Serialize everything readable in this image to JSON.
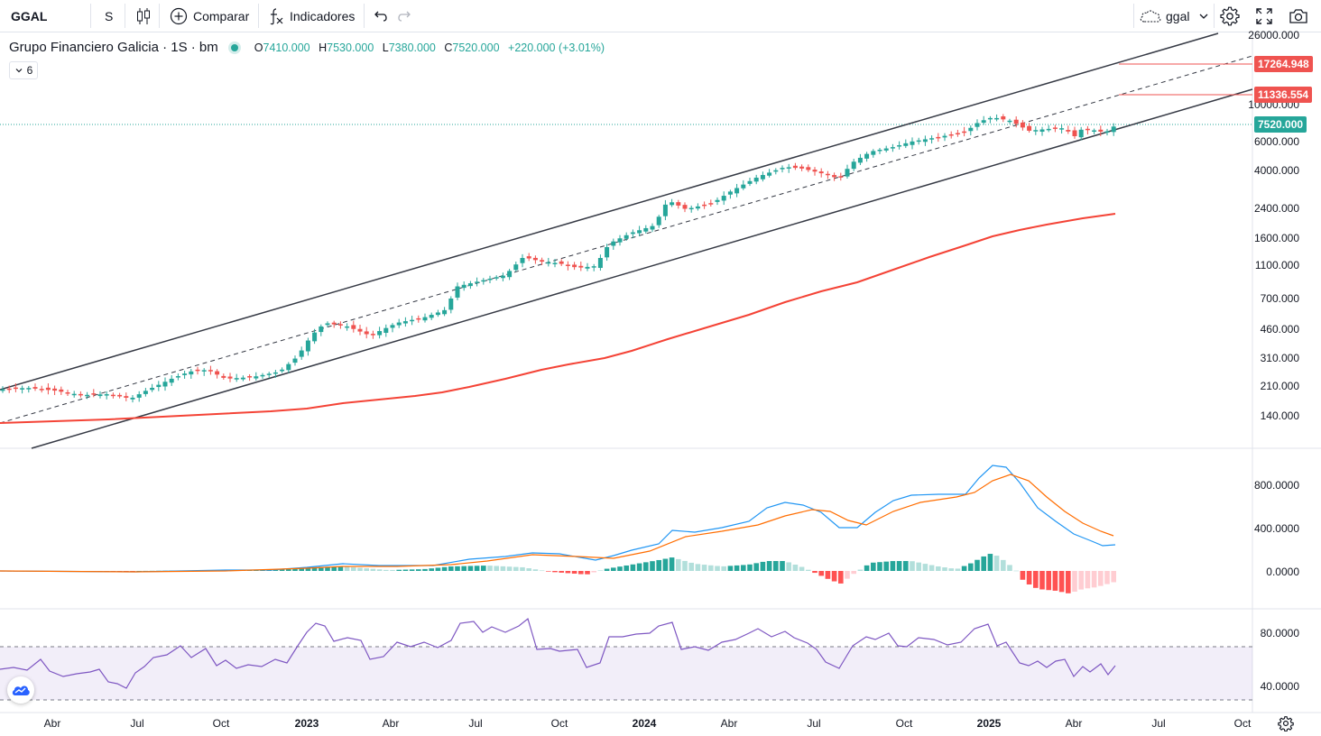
{
  "toolbar": {
    "symbol": "GGAL",
    "interval": "S",
    "compare_label": "Comparar",
    "indicators_label": "Indicadores",
    "layout_name": "ggal"
  },
  "legend": {
    "title": "Grupo Financiero Galicia · 1S · bm",
    "open_key": "O",
    "open": "7410.000",
    "high_key": "H",
    "high": "7530.000",
    "low_key": "L",
    "low": "7380.000",
    "close_key": "C",
    "close": "7520.000",
    "change": "+220.000 (+3.01%)",
    "collapsed_count": "6"
  },
  "colors": {
    "up": "#26a69a",
    "down": "#ef5350",
    "ma": "#f44336",
    "macd": "#2196f3",
    "signal": "#ff6d00",
    "rsi": "#7e57c2",
    "channel": "#363a45"
  },
  "price_axis": {
    "ticks": [
      "26000.000",
      "10000.000",
      "6000.000",
      "4000.000",
      "2400.000",
      "1600.000",
      "1100.000",
      "700.000",
      "460.000",
      "310.000",
      "210.000",
      "140.000"
    ],
    "tags": {
      "upper": "17264.948",
      "mid": "11336.554",
      "last": "7520.000"
    }
  },
  "macd_axis": {
    "ticks": [
      "800.0000",
      "400.0000",
      "0.0000"
    ]
  },
  "rsi_axis": {
    "ticks": [
      "80.0000",
      "40.0000"
    ]
  },
  "time_axis": {
    "labels": [
      {
        "text": "Abr",
        "bold": false
      },
      {
        "text": "Jul",
        "bold": false
      },
      {
        "text": "Oct",
        "bold": false
      },
      {
        "text": "2023",
        "bold": true
      },
      {
        "text": "Abr",
        "bold": false
      },
      {
        "text": "Jul",
        "bold": false
      },
      {
        "text": "Oct",
        "bold": false
      },
      {
        "text": "2024",
        "bold": true
      },
      {
        "text": "Abr",
        "bold": false
      },
      {
        "text": "Jul",
        "bold": false
      },
      {
        "text": "Oct",
        "bold": false
      },
      {
        "text": "2025",
        "bold": true
      },
      {
        "text": "Abr",
        "bold": false
      },
      {
        "text": "Jul",
        "bold": false
      },
      {
        "text": "Oct",
        "bold": false
      }
    ]
  }
}
